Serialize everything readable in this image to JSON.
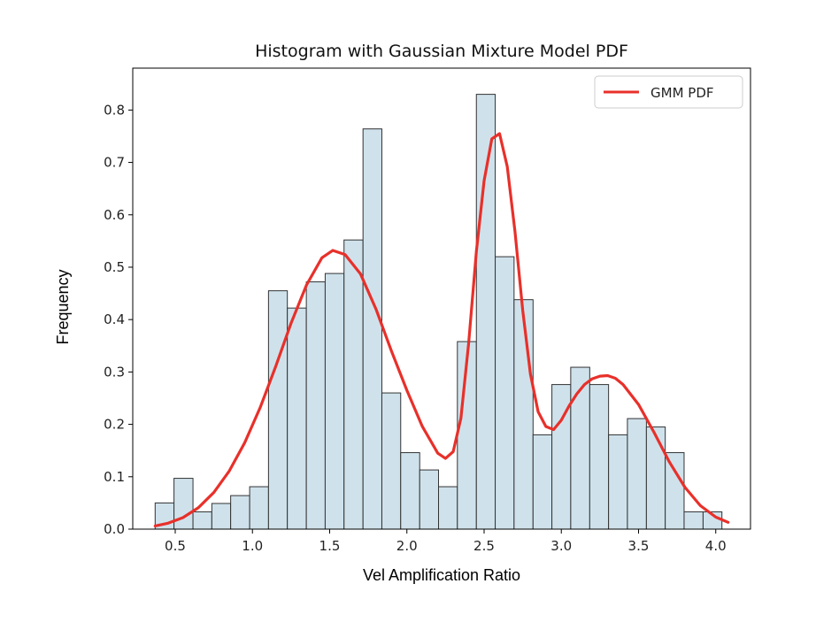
{
  "chart_data": {
    "type": "bar",
    "title": "Histogram with Gaussian Mixture Model PDF",
    "xlabel": "Vel Amplification Ratio",
    "ylabel": "Frequency",
    "xlim": [
      0.225,
      4.225
    ],
    "ylim": [
      0,
      0.88
    ],
    "x_ticks": [
      0.5,
      1.0,
      1.5,
      2.0,
      2.5,
      3.0,
      3.5,
      4.0
    ],
    "x_tick_labels": [
      "0.5",
      "1.0",
      "1.5",
      "2.0",
      "2.5",
      "3.0",
      "3.5",
      "4.0"
    ],
    "y_ticks": [
      0.0,
      0.1,
      0.2,
      0.3,
      0.4,
      0.5,
      0.6,
      0.7,
      0.8
    ],
    "y_tick_labels": [
      "0.0",
      "0.1",
      "0.2",
      "0.3",
      "0.4",
      "0.5",
      "0.6",
      "0.7",
      "0.8"
    ],
    "grid": false,
    "legend": {
      "position": "top-right",
      "entries": [
        "GMM PDF"
      ]
    },
    "histogram": {
      "bin_edges": [
        0.37,
        0.492,
        0.615,
        0.737,
        0.859,
        0.982,
        1.104,
        1.226,
        1.349,
        1.471,
        1.593,
        1.716,
        1.838,
        1.96,
        2.083,
        2.205,
        2.327,
        2.45,
        2.572,
        2.694,
        2.817,
        2.939,
        3.061,
        3.184,
        3.306,
        3.428,
        3.551,
        3.673,
        3.795,
        3.918,
        4.04
      ],
      "values": [
        0.05,
        0.097,
        0.033,
        0.049,
        0.064,
        0.081,
        0.455,
        0.422,
        0.472,
        0.488,
        0.552,
        0.764,
        0.26,
        0.146,
        0.113,
        0.081,
        0.358,
        0.83,
        0.52,
        0.438,
        0.18,
        0.276,
        0.309,
        0.276,
        0.18,
        0.211,
        0.195,
        0.146,
        0.033,
        0.033
      ],
      "color": "#cfe2ec",
      "edge_color": "#333333"
    },
    "series": [
      {
        "name": "GMM PDF",
        "type": "line",
        "color": "#e8302a",
        "x": [
          0.37,
          0.45,
          0.55,
          0.65,
          0.75,
          0.85,
          0.95,
          1.05,
          1.15,
          1.25,
          1.35,
          1.45,
          1.52,
          1.6,
          1.7,
          1.8,
          1.9,
          2.0,
          2.1,
          2.2,
          2.25,
          2.3,
          2.35,
          2.4,
          2.45,
          2.5,
          2.55,
          2.6,
          2.65,
          2.7,
          2.75,
          2.8,
          2.85,
          2.9,
          2.95,
          3.0,
          3.05,
          3.1,
          3.15,
          3.2,
          3.25,
          3.3,
          3.35,
          3.4,
          3.5,
          3.6,
          3.7,
          3.8,
          3.9,
          4.0,
          4.08
        ],
        "y": [
          0.006,
          0.011,
          0.022,
          0.041,
          0.07,
          0.111,
          0.165,
          0.232,
          0.31,
          0.393,
          0.466,
          0.518,
          0.532,
          0.524,
          0.487,
          0.42,
          0.34,
          0.265,
          0.196,
          0.145,
          0.135,
          0.148,
          0.212,
          0.355,
          0.53,
          0.665,
          0.745,
          0.755,
          0.692,
          0.568,
          0.418,
          0.296,
          0.224,
          0.196,
          0.19,
          0.208,
          0.235,
          0.258,
          0.276,
          0.287,
          0.292,
          0.293,
          0.288,
          0.276,
          0.238,
          0.185,
          0.128,
          0.08,
          0.045,
          0.023,
          0.013
        ]
      }
    ]
  }
}
